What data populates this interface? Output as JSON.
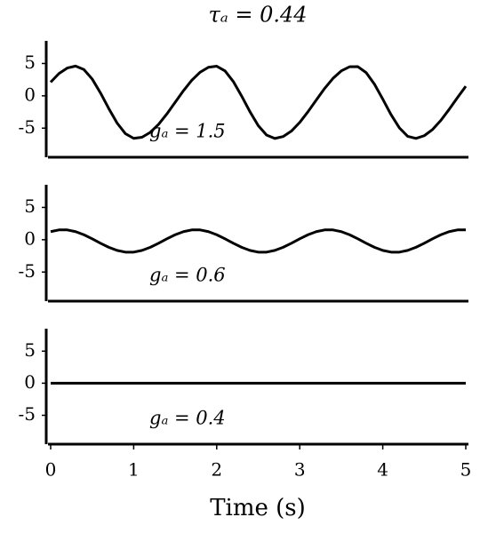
{
  "chart_data": [
    {
      "type": "line",
      "title": "τₐ = 0.44",
      "annotation": "gₐ = 1.5",
      "color": "#000000",
      "x": [
        0,
        0.1,
        0.2,
        0.3,
        0.4,
        0.5,
        0.6,
        0.7,
        0.8,
        0.9,
        1,
        1.1,
        1.2,
        1.3,
        1.4,
        1.5,
        1.6,
        1.7,
        1.8,
        1.9,
        2,
        2.1,
        2.2,
        2.3,
        2.4,
        2.5,
        2.6,
        2.7,
        2.8,
        2.9,
        3,
        3.1,
        3.2,
        3.3,
        3.4,
        3.5,
        3.6,
        3.7,
        3.8,
        3.9,
        4,
        4.1,
        4.2,
        4.3,
        4.4,
        4.5,
        4.6,
        4.7,
        4.8,
        4.9,
        5
      ],
      "values": [
        2.11,
        3.45,
        4.3,
        4.6,
        4.07,
        2.6,
        0.45,
        -1.97,
        -4.21,
        -5.85,
        -6.58,
        -6.41,
        -5.65,
        -4.41,
        -2.8,
        -1.0,
        0.8,
        2.41,
        3.65,
        4.41,
        4.58,
        3.85,
        2.21,
        -0.03,
        -2.45,
        -4.6,
        -6.07,
        -6.6,
        -6.3,
        -5.45,
        -4.11,
        -2.45,
        -0.64,
        1.14,
        2.69,
        3.85,
        4.49,
        4.51,
        3.59,
        1.8,
        -0.51,
        -2.92,
        -4.96,
        -6.26,
        -6.59,
        -6.17,
        -5.21,
        -3.8,
        -2.09,
        -0.27,
        1.48
      ],
      "xlim": [
        0,
        5
      ],
      "ylim": [
        -9.5,
        8.5
      ],
      "yticks": [
        -5,
        0,
        5
      ]
    },
    {
      "type": "line",
      "annotation": "gₐ = 0.6",
      "color": "#000000",
      "x": [
        0,
        0.1,
        0.2,
        0.3,
        0.4,
        0.5,
        0.6,
        0.7,
        0.8,
        0.9,
        1,
        1.1,
        1.2,
        1.3,
        1.4,
        1.5,
        1.6,
        1.7,
        1.8,
        1.9,
        2,
        2.1,
        2.2,
        2.3,
        2.4,
        2.5,
        2.6,
        2.7,
        2.8,
        2.9,
        3,
        3.1,
        3.2,
        3.3,
        3.4,
        3.5,
        3.6,
        3.7,
        3.8,
        3.9,
        4,
        4.1,
        4.2,
        4.3,
        4.4,
        4.5,
        4.6,
        4.7,
        4.8,
        4.9,
        5
      ],
      "values": [
        1.25,
        1.52,
        1.52,
        1.25,
        0.77,
        0.14,
        -0.54,
        -1.17,
        -1.65,
        -1.92,
        -1.92,
        -1.65,
        -1.17,
        -0.54,
        0.14,
        0.77,
        1.25,
        1.52,
        1.52,
        1.25,
        0.77,
        0.14,
        -0.54,
        -1.17,
        -1.65,
        -1.92,
        -1.92,
        -1.65,
        -1.17,
        -0.54,
        0.14,
        0.77,
        1.25,
        1.52,
        1.52,
        1.25,
        0.77,
        0.14,
        -0.54,
        -1.17,
        -1.65,
        -1.92,
        -1.92,
        -1.65,
        -1.17,
        -0.54,
        0.14,
        0.77,
        1.25,
        1.52,
        1.52
      ],
      "xlim": [
        0,
        5
      ],
      "ylim": [
        -9.5,
        8.5
      ],
      "yticks": [
        -5,
        0,
        5
      ]
    },
    {
      "type": "line",
      "annotation": "gₐ = 0.4",
      "color": "#000000",
      "x": [
        0,
        5
      ],
      "values": [
        0,
        0
      ],
      "xlim": [
        0,
        5
      ],
      "ylim": [
        -9.5,
        8.5
      ],
      "yticks": [
        -5,
        0,
        5
      ],
      "xticks": [
        0,
        1,
        2,
        3,
        4,
        5
      ],
      "xlabel": "Time (s)"
    }
  ]
}
